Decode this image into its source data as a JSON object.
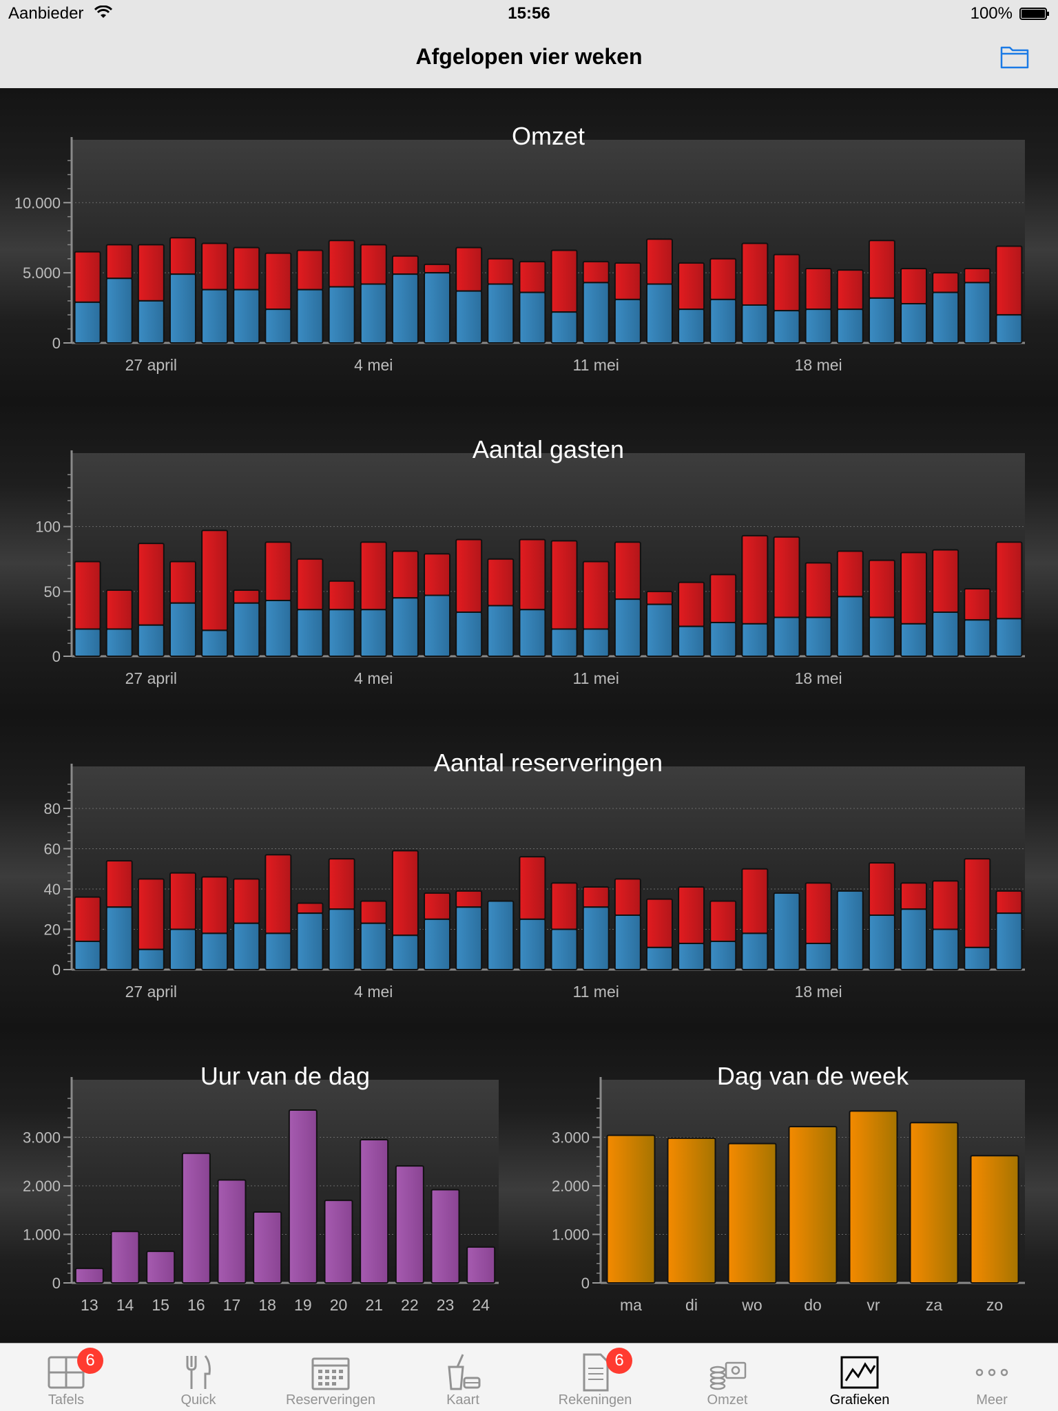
{
  "status_bar": {
    "carrier": "Aanbieder",
    "time": "15:56",
    "battery": "100%"
  },
  "nav": {
    "title": "Afgelopen vier weken",
    "folder_icon": "folder-icon"
  },
  "colors": {
    "red": "#d01a1e",
    "blue": "#2f7fb5",
    "purple": "#9a4fa3",
    "orange": "#ef8300"
  },
  "chart_data": [
    {
      "id": "omzet",
      "type": "bar",
      "stacked": true,
      "title": "Omzet",
      "ylim": [
        0,
        13500
      ],
      "yticks": [
        0,
        5000,
        10000
      ],
      "ytick_labels": [
        "0",
        "5.000",
        "10.000"
      ],
      "xtick_labels": [
        "27 april",
        "4 mei",
        "11 mei",
        "18 mei"
      ],
      "xtick_indices": [
        2,
        9,
        16,
        23
      ],
      "series": [
        {
          "name": "blauw",
          "values": [
            2900,
            4600,
            3000,
            4900,
            3800,
            3800,
            2400,
            3800,
            4000,
            4200,
            4900,
            5000,
            3700,
            4200,
            3600,
            2200,
            4300,
            3100,
            4200,
            2400,
            3100,
            2700,
            2300,
            2400,
            2400,
            3200,
            2800,
            3600,
            4300,
            2000
          ]
        },
        {
          "name": "rood",
          "values": [
            3600,
            2400,
            4000,
            2600,
            3300,
            3000,
            4000,
            2800,
            3300,
            2800,
            1300,
            600,
            3100,
            1800,
            2200,
            4400,
            1500,
            2600,
            3200,
            3300,
            2900,
            4400,
            4000,
            2900,
            2800,
            4100,
            2500,
            1400,
            1000,
            4900
          ]
        }
      ]
    },
    {
      "id": "gasten",
      "type": "bar",
      "stacked": true,
      "title": "Aantal gasten",
      "ylim": [
        0,
        146
      ],
      "yticks": [
        0,
        50,
        100
      ],
      "ytick_labels": [
        "0",
        "50",
        "100"
      ],
      "xtick_labels": [
        "27 april",
        "4 mei",
        "11 mei",
        "18 mei"
      ],
      "xtick_indices": [
        2,
        9,
        16,
        23
      ],
      "series": [
        {
          "name": "blauw",
          "values": [
            21,
            21,
            24,
            41,
            20,
            41,
            43,
            36,
            36,
            36,
            45,
            47,
            34,
            39,
            36,
            21,
            21,
            44,
            40,
            23,
            26,
            25,
            30,
            30,
            46,
            30,
            25,
            34,
            28,
            29
          ]
        },
        {
          "name": "rood",
          "values": [
            52,
            30,
            63,
            32,
            77,
            10,
            45,
            39,
            22,
            52,
            36,
            32,
            56,
            36,
            54,
            68,
            52,
            44,
            10,
            34,
            37,
            68,
            62,
            42,
            35,
            44,
            55,
            48,
            24,
            59
          ]
        }
      ]
    },
    {
      "id": "reserveringen",
      "type": "bar",
      "stacked": true,
      "title": "Aantal reserveringen",
      "ylim": [
        0,
        94
      ],
      "yticks": [
        0,
        20,
        40,
        60,
        80
      ],
      "ytick_labels": [
        "0",
        "20",
        "40",
        "60",
        "80"
      ],
      "xtick_labels": [
        "27 april",
        "4 mei",
        "11 mei",
        "18 mei"
      ],
      "xtick_indices": [
        2,
        9,
        16,
        23
      ],
      "series": [
        {
          "name": "blauw",
          "values": [
            14,
            31,
            10,
            20,
            18,
            23,
            18,
            28,
            30,
            23,
            17,
            25,
            31,
            34,
            25,
            20,
            31,
            27,
            11,
            13,
            14,
            18,
            38,
            13,
            39,
            27,
            30,
            20,
            11,
            28
          ]
        },
        {
          "name": "rood",
          "values": [
            22,
            23,
            35,
            28,
            28,
            22,
            39,
            5,
            25,
            11,
            42,
            13,
            8,
            0,
            31,
            23,
            10,
            18,
            24,
            28,
            20,
            32,
            0,
            30,
            0,
            26,
            13,
            24,
            44,
            11
          ]
        }
      ]
    },
    {
      "id": "uur",
      "type": "bar",
      "title": "Uur van de dag",
      "categories": [
        "13",
        "14",
        "15",
        "16",
        "17",
        "18",
        "19",
        "20",
        "21",
        "22",
        "23",
        "24"
      ],
      "values": [
        300,
        1060,
        650,
        2670,
        2120,
        1460,
        3560,
        1700,
        2950,
        2410,
        1920,
        740
      ],
      "ylim": [
        0,
        3900
      ],
      "yticks": [
        0,
        1000,
        2000,
        3000
      ],
      "ytick_labels": [
        "0",
        "1.000",
        "2.000",
        "3.000"
      ]
    },
    {
      "id": "dag",
      "type": "bar",
      "title": "Dag van de week",
      "categories": [
        "ma",
        "di",
        "wo",
        "do",
        "vr",
        "za",
        "zo"
      ],
      "values": [
        3040,
        2980,
        2870,
        3220,
        3540,
        3300,
        2620
      ],
      "ylim": [
        0,
        3900
      ],
      "yticks": [
        0,
        1000,
        2000,
        3000
      ],
      "ytick_labels": [
        "0",
        "1.000",
        "2.000",
        "3.000"
      ]
    }
  ],
  "tab_bar": {
    "items": [
      {
        "label": "Tafels",
        "icon": "tables-icon",
        "badge": "6"
      },
      {
        "label": "Quick",
        "icon": "fork-knife-icon"
      },
      {
        "label": "Reserveringen",
        "icon": "calendar-icon"
      },
      {
        "label": "Kaart",
        "icon": "menu-card-icon"
      },
      {
        "label": "Rekeningen",
        "icon": "receipt-icon",
        "badge": "6"
      },
      {
        "label": "Omzet",
        "icon": "revenue-icon"
      },
      {
        "label": "Grafieken",
        "icon": "chart-icon"
      },
      {
        "label": "Meer",
        "icon": "more-icon"
      }
    ]
  }
}
